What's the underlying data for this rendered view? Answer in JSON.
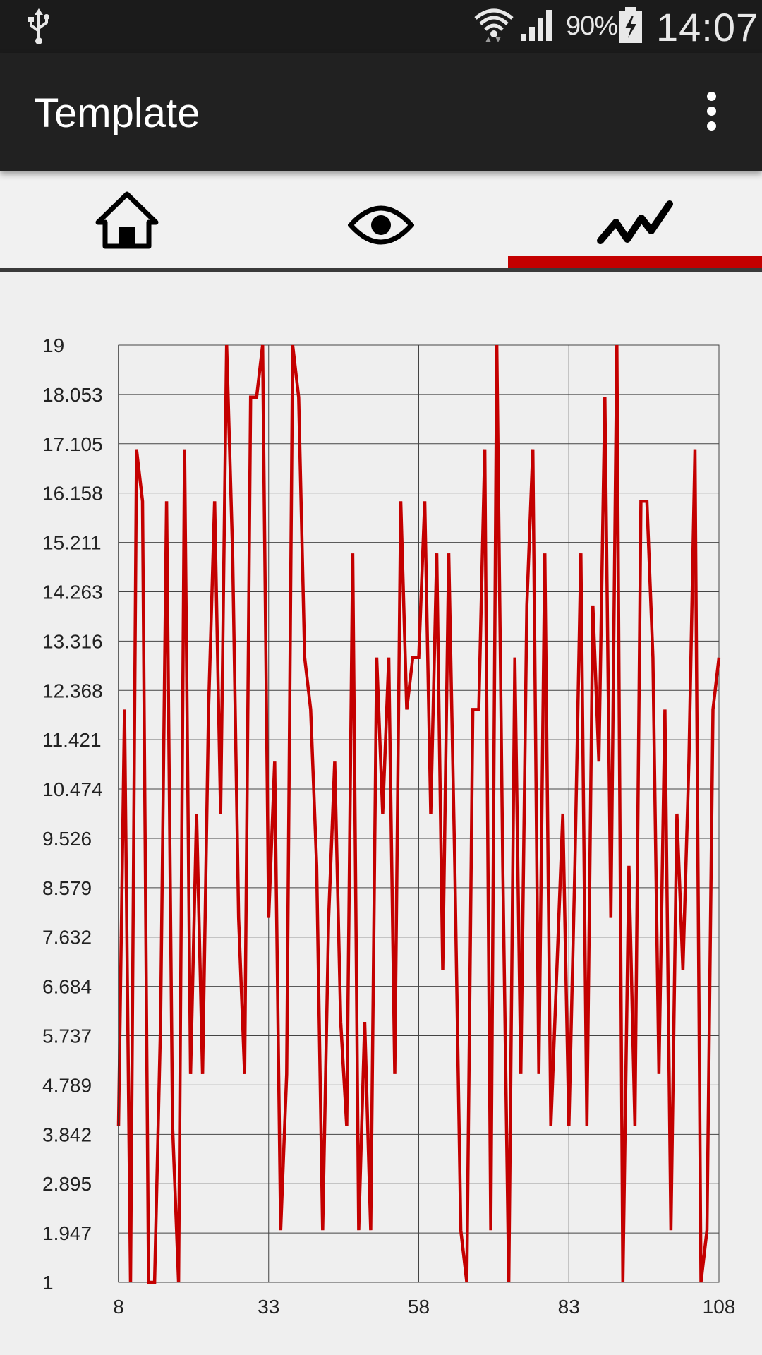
{
  "status_bar": {
    "usb_icon": "usb-icon",
    "wifi_icon": "wifi-icon",
    "signal_icon": "signal-icon",
    "battery_percent": "90%",
    "battery_icon": "battery-charging-icon",
    "time": "14:07"
  },
  "app_bar": {
    "title": "Template",
    "overflow_icon": "more-vert-icon"
  },
  "tabs": [
    {
      "icon": "home-icon",
      "selected": false
    },
    {
      "icon": "eye-icon",
      "selected": false
    },
    {
      "icon": "chart-line-icon",
      "selected": true
    }
  ],
  "colors": {
    "accent": "#c40000",
    "app_bar": "#212121",
    "status_bar": "#1b1b1b",
    "background": "#efefef"
  },
  "chart_data": {
    "type": "line",
    "title": "",
    "xlabel": "",
    "ylabel": "",
    "xlim": [
      8,
      108
    ],
    "ylim": [
      1,
      19
    ],
    "x_ticks": [
      "8",
      "33",
      "58",
      "83",
      "108"
    ],
    "y_ticks": [
      "19",
      "18.053",
      "17.105",
      "16.158",
      "15.211",
      "14.263",
      "13.316",
      "12.368",
      "11.421",
      "10.474",
      "9.526",
      "8.579",
      "7.632",
      "6.684",
      "5.737",
      "4.789",
      "3.842",
      "2.895",
      "1.947",
      "1"
    ],
    "grid": true,
    "series": [
      {
        "color": "#c40000",
        "x": [
          8,
          9,
          10,
          11,
          12,
          13,
          14,
          15,
          16,
          17,
          18,
          19,
          20,
          21,
          22,
          23,
          24,
          25,
          26,
          27,
          28,
          29,
          30,
          31,
          32,
          33,
          34,
          35,
          36,
          37,
          38,
          39,
          40,
          41,
          42,
          43,
          44,
          45,
          46,
          47,
          48,
          49,
          50,
          51,
          52,
          53,
          54,
          55,
          56,
          57,
          58,
          59,
          60,
          61,
          62,
          63,
          64,
          65,
          66,
          67,
          68,
          69,
          70,
          71,
          72,
          73,
          74,
          75,
          76,
          77,
          78,
          79,
          80,
          81,
          82,
          83,
          84,
          85,
          86,
          87,
          88,
          89,
          90,
          91,
          92,
          93,
          94,
          95,
          96,
          97,
          98,
          99,
          100,
          101,
          102,
          103,
          104,
          105,
          106,
          107,
          108
        ],
        "values": [
          4,
          12,
          1,
          17,
          16,
          1,
          1,
          6,
          16,
          4,
          1,
          17,
          5,
          10,
          5,
          12,
          16,
          10,
          19,
          15,
          8,
          5,
          18,
          18,
          19,
          8,
          11,
          2,
          5,
          19,
          18,
          13,
          12,
          9,
          2,
          8,
          11,
          6,
          4,
          15,
          2,
          6,
          2,
          13,
          10,
          13,
          5,
          16,
          12,
          13,
          13,
          16,
          10,
          15,
          7,
          15,
          9,
          2,
          1,
          12,
          12,
          17,
          2,
          19,
          9,
          1,
          13,
          5,
          14,
          17,
          5,
          15,
          4,
          7,
          10,
          4,
          9,
          15,
          4,
          14,
          11,
          18,
          8,
          19,
          1,
          9,
          4,
          16,
          16,
          13,
          5,
          12,
          2,
          10,
          7,
          11,
          17,
          1,
          2,
          12,
          13
        ]
      }
    ]
  }
}
